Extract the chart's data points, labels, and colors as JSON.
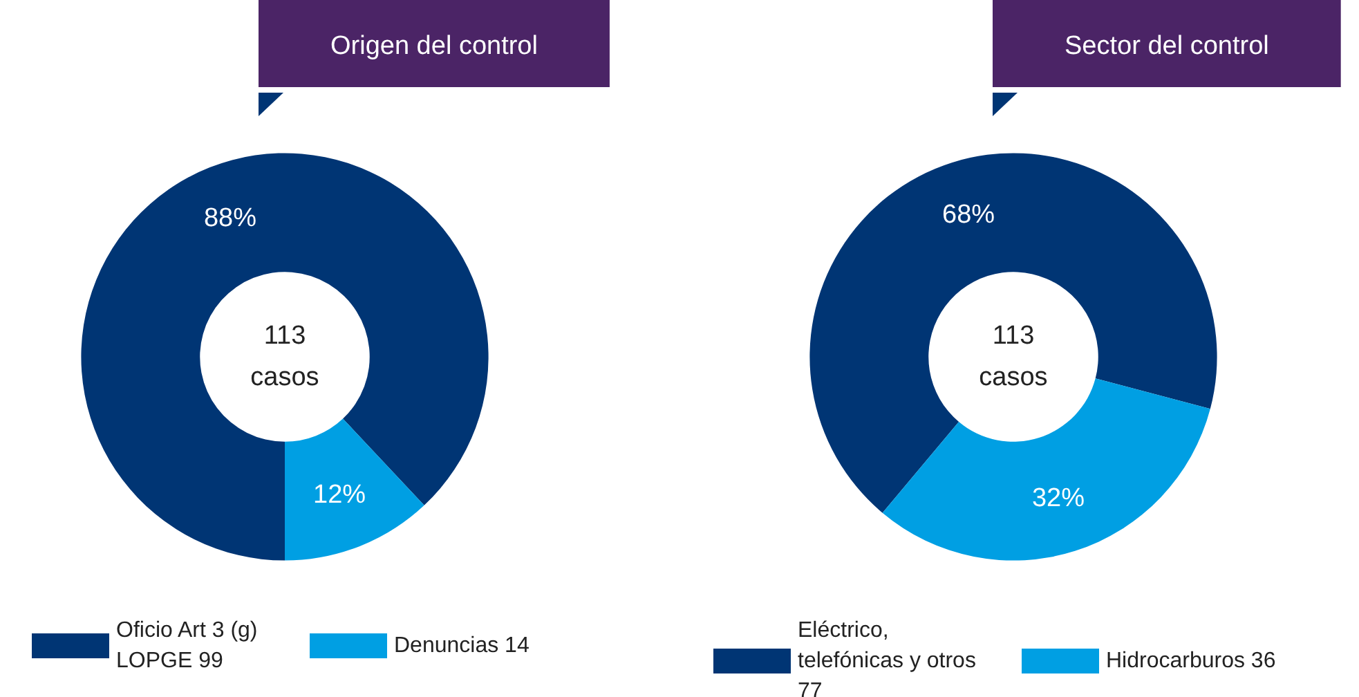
{
  "chart_data": [
    {
      "type": "donut",
      "title": "Origen del control",
      "categories": [
        "Oficio Art 3 (g) LOPGE 99",
        "Denuncias 14"
      ],
      "values": [
        88,
        12
      ],
      "value_labels": [
        "88%",
        "12%"
      ],
      "colors": [
        "#003574",
        "#009fe3"
      ],
      "annotations": [
        "113\ncasos"
      ],
      "legend": "bottom"
    },
    {
      "type": "donut",
      "title": "Sector del control",
      "categories": [
        "Eléctrico, telefónicas y otros 77",
        "Hidrocarburos 36"
      ],
      "values": [
        68,
        32
      ],
      "value_labels": [
        "68%",
        "32%"
      ],
      "colors": [
        "#003574",
        "#009fe3"
      ],
      "annotations": [
        "113\ncasos"
      ],
      "legend": "bottom"
    }
  ]
}
